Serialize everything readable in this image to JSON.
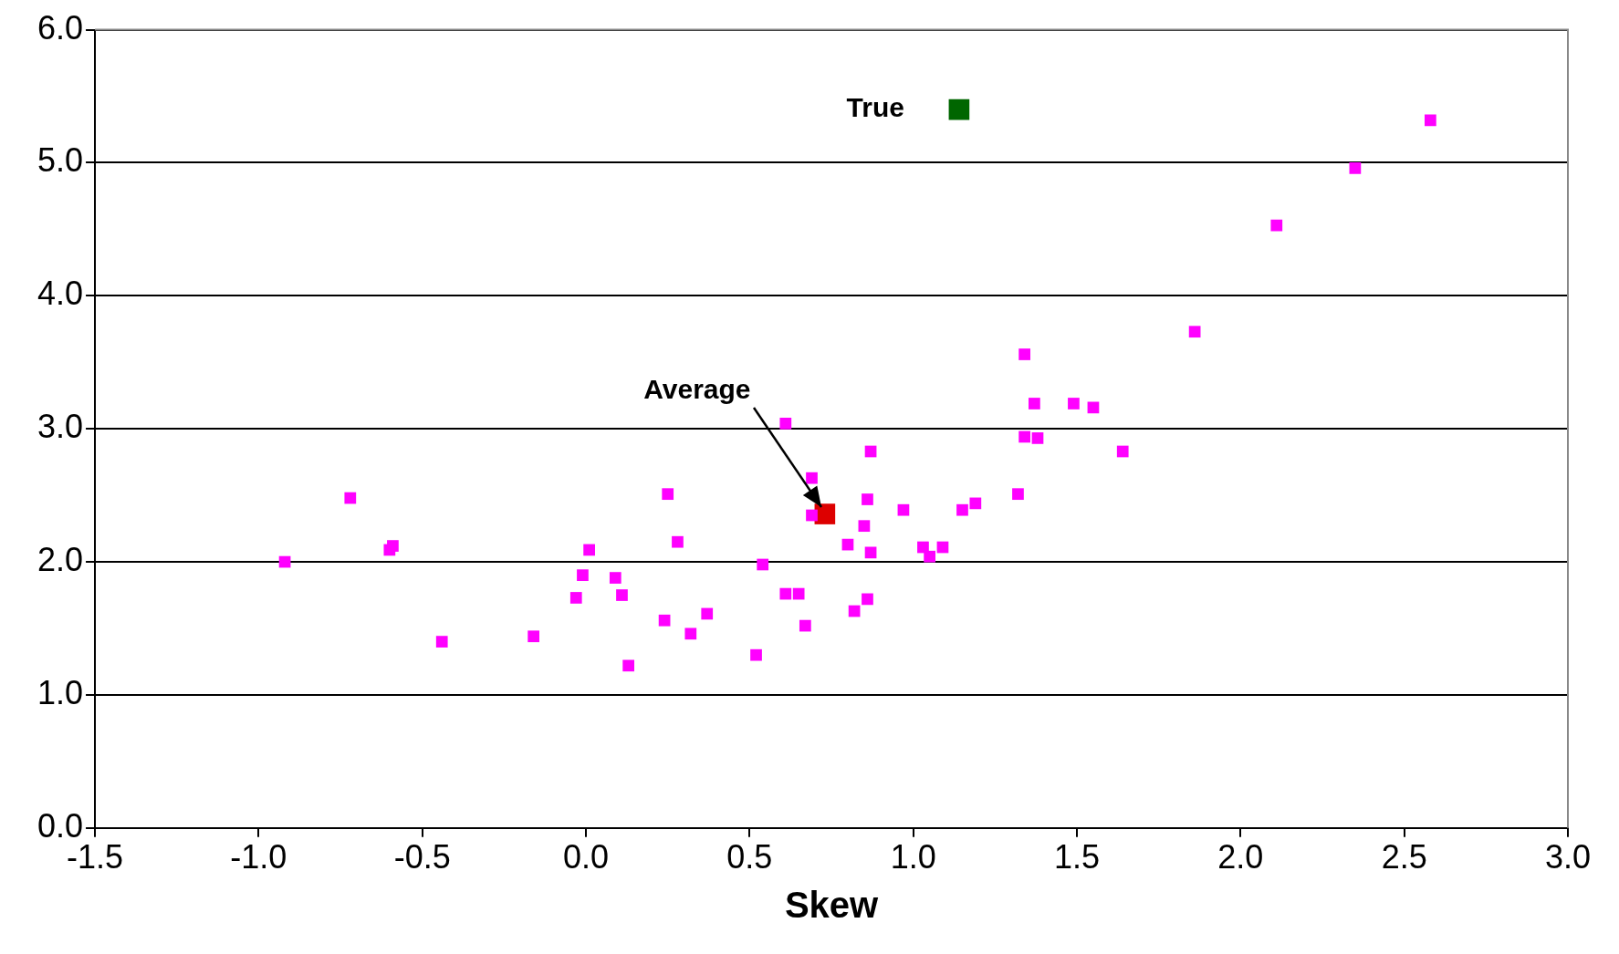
{
  "chart_data": {
    "type": "scatter",
    "xlabel": "Skew",
    "xlim": [
      -1.5,
      3.0
    ],
    "ylim": [
      0,
      6.0
    ],
    "xticks": [
      {
        "value": -1.5,
        "label": "-1.5"
      },
      {
        "value": -1,
        "label": "-1.0"
      },
      {
        "value": -0.5,
        "label": "-0.5"
      },
      {
        "value": 0,
        "label": "0.0"
      },
      {
        "value": 0.5,
        "label": "0.5"
      },
      {
        "value": 1,
        "label": "1.0"
      },
      {
        "value": 1.5,
        "label": "1.5"
      },
      {
        "value": 2,
        "label": "2.0"
      },
      {
        "value": 2.5,
        "label": "2.5"
      },
      {
        "value": 3,
        "label": "3.0"
      }
    ],
    "yticks": [
      {
        "value": 0,
        "label": "0.0"
      },
      {
        "value": 1,
        "label": "1.0"
      },
      {
        "value": 2,
        "label": "2.0"
      },
      {
        "value": 3,
        "label": "3.0"
      },
      {
        "value": 4,
        "label": "4.0"
      },
      {
        "value": 5,
        "label": "5.0"
      },
      {
        "value": 6,
        "label": "6.0"
      }
    ],
    "grid": "y",
    "marker": "square",
    "legend": false,
    "series": [
      {
        "color": "#ff00ff",
        "x": [
          -0.92,
          -0.72,
          -0.6,
          -0.59,
          -0.44,
          -0.16,
          -0.03,
          -0.01,
          0.01,
          0.09,
          0.11,
          0.13,
          0.24,
          0.25,
          0.28,
          0.32,
          0.37,
          0.52,
          0.54,
          0.61,
          0.61,
          0.65,
          0.67,
          0.69,
          0.69,
          0.8,
          0.82,
          0.85,
          0.86,
          0.86,
          0.87,
          0.87,
          0.97,
          1.03,
          1.05,
          1.09,
          1.15,
          1.19,
          1.32,
          1.34,
          1.34,
          1.37,
          1.38,
          1.49,
          1.55,
          1.64,
          1.86,
          2.11,
          2.35,
          2.58
        ],
        "values": [
          2.0,
          2.48,
          2.09,
          2.12,
          1.4,
          1.44,
          1.73,
          1.9,
          2.09,
          1.88,
          1.75,
          1.22,
          1.56,
          2.51,
          2.15,
          1.46,
          1.61,
          1.3,
          1.98,
          3.04,
          1.76,
          1.76,
          1.52,
          2.63,
          2.35,
          2.13,
          1.63,
          2.27,
          2.47,
          1.72,
          2.83,
          2.07,
          2.39,
          2.11,
          2.04,
          2.11,
          2.39,
          2.44,
          2.51,
          3.56,
          2.94,
          3.19,
          2.93,
          3.19,
          3.16,
          2.83,
          3.73,
          4.53,
          4.96,
          5.32
        ]
      },
      {
        "color": "#dd0000",
        "x": [
          0.73
        ],
        "values": [
          2.36
        ]
      },
      {
        "color": "#006600",
        "x": [
          1.14
        ],
        "values": [
          5.4
        ]
      }
    ],
    "annotations": [
      {
        "text": "Average",
        "x": 0.73,
        "y": 2.36
      },
      {
        "text": "True",
        "x": 1.14,
        "y": 5.4
      }
    ]
  }
}
